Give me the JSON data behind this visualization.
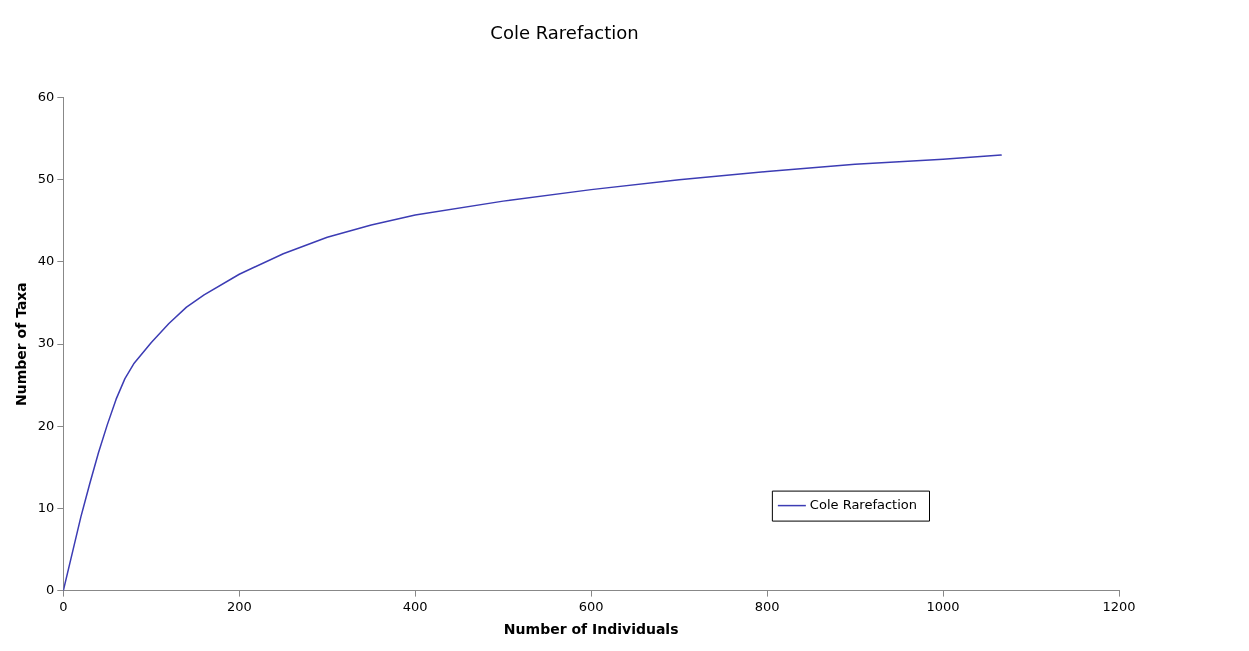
{
  "chart_data": {
    "type": "line",
    "title": "Cole Rarefaction",
    "xlabel": "Number of Individuals",
    "ylabel": "Number of Taxa",
    "xlim": [
      0,
      1200
    ],
    "xticks": [
      0,
      200,
      400,
      600,
      800,
      1000,
      1200
    ],
    "ylim": [
      0,
      60
    ],
    "yticks": [
      0,
      10,
      20,
      30,
      40,
      50,
      60
    ],
    "grid": false,
    "legend": "bottom right",
    "marker": "none",
    "line_style": "solid",
    "series": [
      {
        "name": "Cole Rarefaction",
        "color": "#3c3cb4",
        "x": [
          0,
          10,
          20,
          30,
          40,
          50,
          60,
          70,
          80,
          100,
          120,
          140,
          160,
          200,
          250,
          300,
          350,
          400,
          500,
          600,
          700,
          800,
          900,
          1000,
          1066
        ],
        "values": [
          0,
          4.5,
          9,
          13,
          16.8,
          20.2,
          23.3,
          25.8,
          27.6,
          30.2,
          32.5,
          34.5,
          36,
          38.5,
          41,
          43,
          44.5,
          45.7,
          47.4,
          48.8,
          50,
          51,
          51.9,
          52.5,
          53
        ]
      }
    ]
  }
}
